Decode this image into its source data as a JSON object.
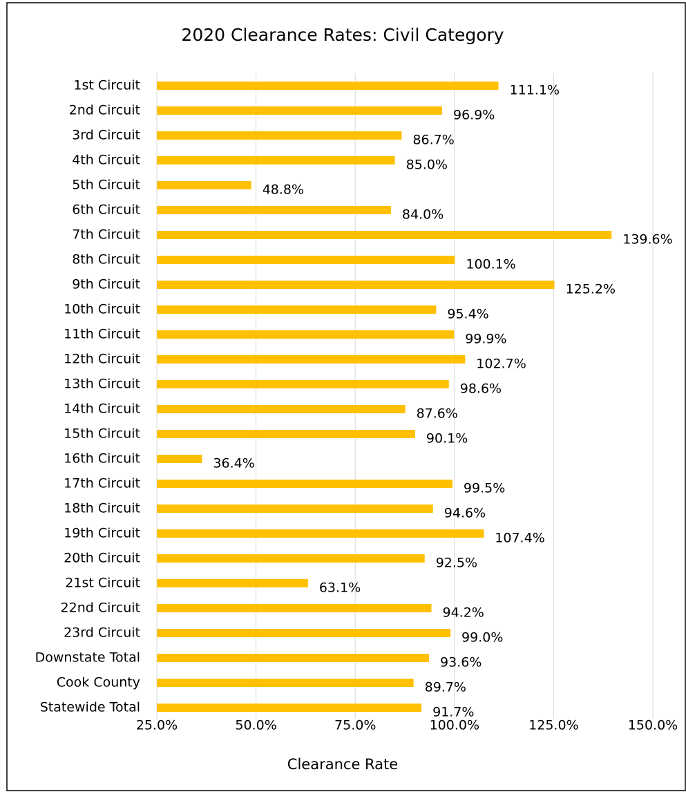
{
  "chart_data": {
    "type": "bar",
    "orientation": "horizontal",
    "title": "2020 Clearance Rates: Civil Category",
    "x_label": "Clearance Rate",
    "categories": [
      "1st Circuit",
      "2nd Circuit",
      "3rd Circuit",
      "4th Circuit",
      "5th Circuit",
      "6th Circuit",
      "7th Circuit",
      "8th Circuit",
      "9th Circuit",
      "10th Circuit",
      "11th Circuit",
      "12th Circuit",
      "13th Circuit",
      "14th Circuit",
      "15th Circuit",
      "16th Circuit",
      "17th Circuit",
      "18th Circuit",
      "19th Circuit",
      "20th Circuit",
      "21st Circuit",
      "22nd Circuit",
      "23rd Circuit",
      "Downstate Total",
      "Cook County",
      "Statewide Total"
    ],
    "values": [
      111.1,
      96.9,
      86.7,
      85.0,
      48.8,
      84.0,
      139.6,
      100.1,
      125.2,
      95.4,
      99.9,
      102.7,
      98.6,
      87.6,
      90.1,
      36.4,
      99.5,
      94.6,
      107.4,
      92.5,
      63.1,
      94.2,
      99.0,
      93.6,
      89.7,
      91.7
    ],
    "value_labels": [
      "111.1%",
      "96.9%",
      "86.7%",
      "85.0%",
      "48.8%",
      "84.0%",
      "139.6%",
      "100.1%",
      "125.2%",
      "95.4%",
      "99.9%",
      "102.7%",
      "98.6%",
      "87.6%",
      "90.1%",
      "36.4%",
      "99.5%",
      "94.6%",
      "107.4%",
      "92.5%",
      "63.1%",
      "94.2%",
      "99.0%",
      "93.6%",
      "89.7%",
      "91.7%"
    ],
    "color": "#ffc000",
    "xlim": [
      25,
      150
    ],
    "xticks": [
      {
        "value": 25,
        "label": "25.0%"
      },
      {
        "value": 50,
        "label": "50.0%"
      },
      {
        "value": 75,
        "label": "75.0%"
      },
      {
        "value": 100,
        "label": "100.0%"
      },
      {
        "value": 125,
        "label": "125.0%"
      },
      {
        "value": 150,
        "label": "150.0%"
      }
    ],
    "grid": true
  }
}
